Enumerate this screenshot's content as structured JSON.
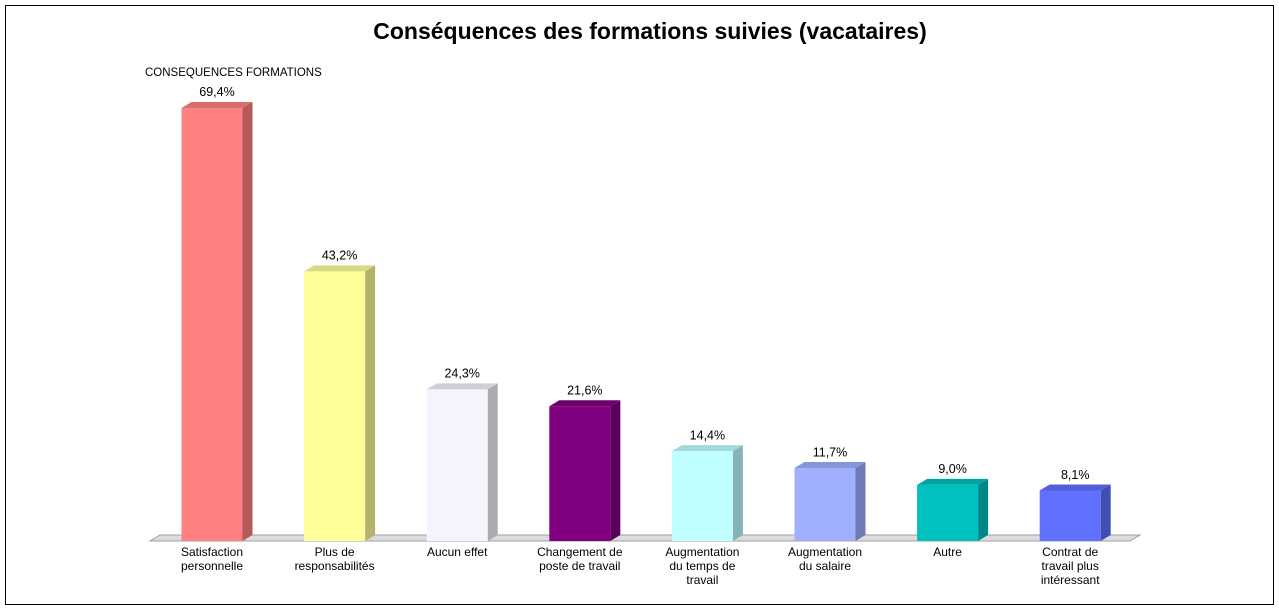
{
  "chart_data": {
    "type": "bar3d",
    "title": "Conséquences des formations suivies (vacataires)",
    "subtitle": "CONSEQUENCES FORMATIONS",
    "categories": [
      "Satisfaction\npersonnelle",
      "Plus de\nresponsabilités",
      "Aucun effet",
      "Changement de\nposte de travail",
      "Augmentation\ndu temps de\ntravail",
      "Augmentation\ndu salaire",
      "Autre",
      "Contrat de\ntravail plus\nintéressant"
    ],
    "values": [
      69.4,
      43.2,
      24.3,
      21.6,
      14.4,
      11.7,
      9.0,
      8.1
    ],
    "value_labels": [
      "69,4%",
      "43,2%",
      "24,3%",
      "21,6%",
      "14,4%",
      "11,7%",
      "9,0%",
      "8,1%"
    ],
    "colors": [
      "#ff8080",
      "#ffff99",
      "#f4f4fc",
      "#800080",
      "#c0ffff",
      "#a0b0ff",
      "#00c0c0",
      "#6070ff"
    ]
  }
}
